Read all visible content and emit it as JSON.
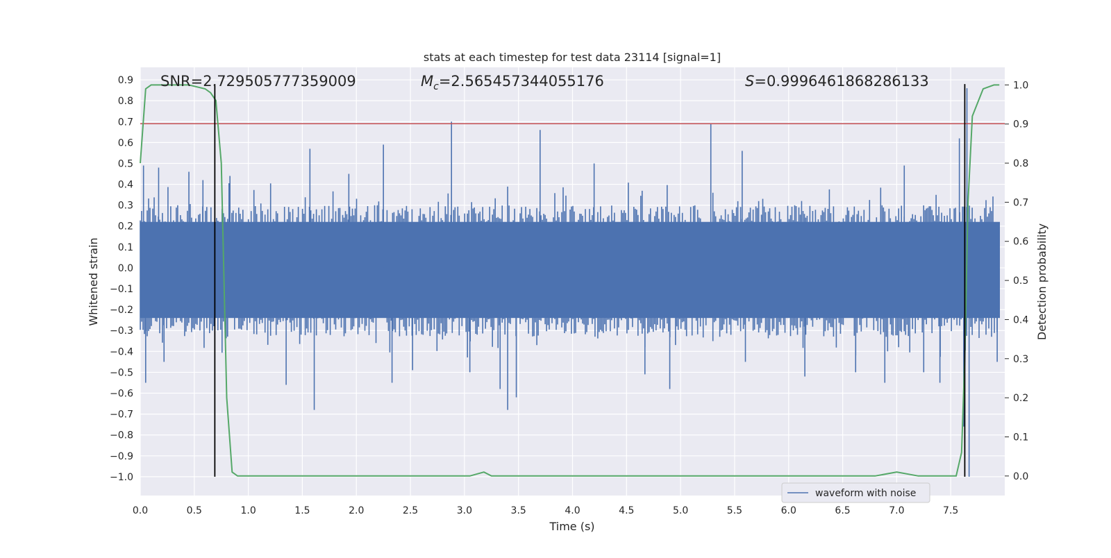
{
  "chart_data": {
    "type": "line",
    "title": "stats at each timestep for test data 23114 [signal=1]",
    "xlabel": "Time (s)",
    "ylabel": "Whitened strain",
    "y2label": "Detection probability",
    "xlim": [
      0.0,
      8.0
    ],
    "ylim": [
      -1.09,
      0.96
    ],
    "y2lim": [
      -0.05,
      1.045
    ],
    "grid": true,
    "legend_position": "bottom-right",
    "x_ticks": [
      "0.0",
      "0.5",
      "1.0",
      "1.5",
      "2.0",
      "2.5",
      "3.0",
      "3.5",
      "4.0",
      "4.5",
      "5.0",
      "5.5",
      "6.0",
      "6.5",
      "7.0",
      "7.5"
    ],
    "y_ticks": [
      "0.9",
      "0.8",
      "0.7",
      "0.6",
      "0.5",
      "0.4",
      "0.3",
      "0.2",
      "0.1",
      "0.0",
      "−0.1",
      "−0.2",
      "−0.3",
      "−0.4",
      "−0.5",
      "−0.6",
      "−0.7",
      "−0.8",
      "−0.9",
      "−1.0"
    ],
    "y2_ticks": [
      "1.0",
      "0.9",
      "0.8",
      "0.7",
      "0.6",
      "0.5",
      "0.4",
      "0.3",
      "0.2",
      "0.1",
      "0.0"
    ],
    "annotations": {
      "snr": "SNR=2.729505777359009",
      "mc_symbol": "M",
      "mc_sub": "c",
      "mc_value": "=2.565457344055176",
      "s_symbol": "S",
      "s_value": "=0.9996461868286133"
    },
    "series": [
      {
        "name": "waveform with noise",
        "axis": "left",
        "color": "#4c72b0",
        "envelope_hi_typical": 0.3,
        "envelope_lo_typical": -0.33,
        "spikes": [
          {
            "x": 0.03,
            "v": 0.49
          },
          {
            "x": 0.05,
            "v": -0.55
          },
          {
            "x": 0.17,
            "v": 0.48
          },
          {
            "x": 0.22,
            "v": -0.45
          },
          {
            "x": 0.45,
            "v": 0.46
          },
          {
            "x": 0.58,
            "v": 0.42
          },
          {
            "x": 0.83,
            "v": 0.44
          },
          {
            "x": 1.35,
            "v": -0.56
          },
          {
            "x": 1.57,
            "v": 0.57
          },
          {
            "x": 1.61,
            "v": -0.68
          },
          {
            "x": 1.93,
            "v": 0.45
          },
          {
            "x": 2.25,
            "v": 0.59
          },
          {
            "x": 2.33,
            "v": -0.55
          },
          {
            "x": 2.52,
            "v": -0.49
          },
          {
            "x": 2.88,
            "v": 0.7
          },
          {
            "x": 3.05,
            "v": -0.5
          },
          {
            "x": 3.33,
            "v": -0.58
          },
          {
            "x": 3.4,
            "v": -0.68
          },
          {
            "x": 3.48,
            "v": -0.62
          },
          {
            "x": 3.7,
            "v": 0.66
          },
          {
            "x": 4.2,
            "v": 0.5
          },
          {
            "x": 4.67,
            "v": -0.51
          },
          {
            "x": 4.9,
            "v": -0.58
          },
          {
            "x": 5.28,
            "v": 0.69
          },
          {
            "x": 5.57,
            "v": 0.56
          },
          {
            "x": 5.6,
            "v": -0.45
          },
          {
            "x": 6.12,
            "v": 0.32
          },
          {
            "x": 6.15,
            "v": -0.52
          },
          {
            "x": 6.62,
            "v": -0.5
          },
          {
            "x": 6.89,
            "v": -0.55
          },
          {
            "x": 7.07,
            "v": 0.49
          },
          {
            "x": 7.25,
            "v": -0.5
          },
          {
            "x": 7.4,
            "v": -0.55
          },
          {
            "x": 7.58,
            "v": 0.62
          },
          {
            "x": 7.62,
            "v": -0.76
          },
          {
            "x": 7.65,
            "v": 0.86
          },
          {
            "x": 7.67,
            "v": -1.0
          },
          {
            "x": 7.93,
            "v": -0.45
          }
        ]
      },
      {
        "name": "detection probability",
        "axis": "right",
        "color": "#55a868",
        "x": [
          0.0,
          0.05,
          0.1,
          0.15,
          0.3,
          0.45,
          0.6,
          0.65,
          0.7,
          0.75,
          0.8,
          0.85,
          0.9,
          0.95,
          1.0,
          1.2,
          1.5,
          2.0,
          2.5,
          2.9,
          3.05,
          3.18,
          3.25,
          3.3,
          3.5,
          4.0,
          5.0,
          5.5,
          6.0,
          6.3,
          6.5,
          6.8,
          7.0,
          7.2,
          7.55,
          7.6,
          7.63,
          7.66,
          7.7,
          7.8,
          7.9,
          7.95
        ],
        "y": [
          0.8,
          0.99,
          1.0,
          1.0,
          1.0,
          1.0,
          0.99,
          0.98,
          0.96,
          0.8,
          0.2,
          0.01,
          0.0,
          0.0,
          0.0,
          0.0,
          0.0,
          0.0,
          0.0,
          0.0,
          0.0,
          0.01,
          0.0,
          0.0,
          0.0,
          0.0,
          0.0,
          0.0,
          0.0,
          0.0,
          0.0,
          0.0,
          0.01,
          0.0,
          0.0,
          0.06,
          0.3,
          0.7,
          0.92,
          0.99,
          1.0,
          1.0
        ]
      }
    ],
    "hlines": [
      {
        "axis": "left",
        "y": 0.69,
        "color": "#c44e52"
      }
    ],
    "vlines": [
      {
        "x": 0.69,
        "y_top": 0.88,
        "color": "#000000"
      },
      {
        "x": 7.63,
        "y_top": 0.88,
        "color": "#000000"
      }
    ],
    "legend": [
      {
        "label": "waveform with noise",
        "color": "#4c72b0"
      }
    ]
  }
}
